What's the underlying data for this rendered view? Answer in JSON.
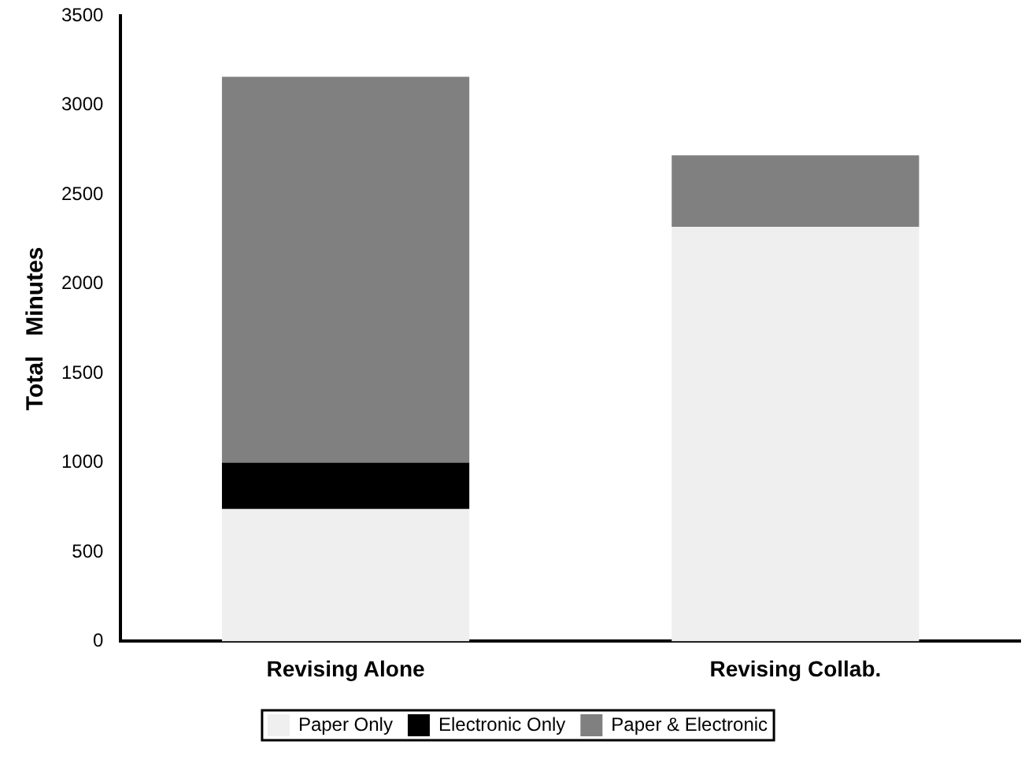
{
  "chart_data": {
    "type": "bar",
    "ylabel": "Total   Minutes",
    "categories": [
      "Revising Alone",
      "Revising Collab."
    ],
    "stacked": true,
    "series": [
      {
        "name": "Paper Only",
        "color": "#efefef",
        "values": [
          740,
          2320
        ]
      },
      {
        "name": "Electronic Only",
        "color": "#000000",
        "values": [
          260,
          0
        ]
      },
      {
        "name": "Paper & Electronic",
        "color": "#808080",
        "values": [
          2160,
          400
        ]
      }
    ],
    "ylim": [
      0,
      3500
    ],
    "yticks": [
      0,
      500,
      1000,
      1500,
      2000,
      2500,
      3000,
      3500
    ],
    "grid": false,
    "legend": "bottom"
  }
}
